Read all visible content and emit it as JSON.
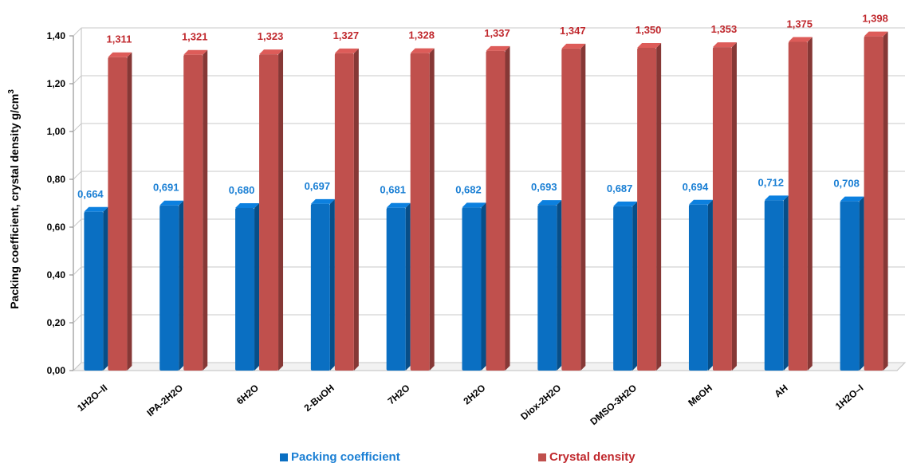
{
  "chart_data": {
    "type": "bar",
    "title": "",
    "xlabel": "",
    "ylabel": "Packing coefficient, crystal density g/cm",
    "ylabel_sup": "3",
    "ylim": [
      0,
      1.4
    ],
    "yticks": [
      "0,00",
      "0,20",
      "0,40",
      "0,60",
      "0,80",
      "1,00",
      "1,20",
      "1,40"
    ],
    "grid": true,
    "legend_position": "bottom",
    "categories": [
      "1H2O–II",
      "IPA-2H2O",
      "6H2O",
      "2-BuOH",
      "7H2O",
      "2H2O",
      "Diox-2H2O",
      "DMSO-3H2O",
      "MeOH",
      "AH",
      "1H2O–I"
    ],
    "series": [
      {
        "name": "Packing coefficient",
        "color": "#0a6fc2",
        "values": [
          0.664,
          0.691,
          0.68,
          0.697,
          0.681,
          0.682,
          0.693,
          0.687,
          0.694,
          0.712,
          0.708
        ],
        "labels": [
          "0,664",
          "0,691",
          "0,680",
          "0,697",
          "0,681",
          "0,682",
          "0,693",
          "0,687",
          "0,694",
          "0,712",
          "0,708"
        ]
      },
      {
        "name": "Crystal density",
        "color": "#c0504d",
        "values": [
          1.311,
          1.321,
          1.323,
          1.327,
          1.328,
          1.337,
          1.347,
          1.35,
          1.353,
          1.375,
          1.398
        ],
        "labels": [
          "1,311",
          "1,321",
          "1,323",
          "1,327",
          "1,328",
          "1,337",
          "1,347",
          "1,350",
          "1,353",
          "1,375",
          "1,398"
        ]
      }
    ]
  }
}
